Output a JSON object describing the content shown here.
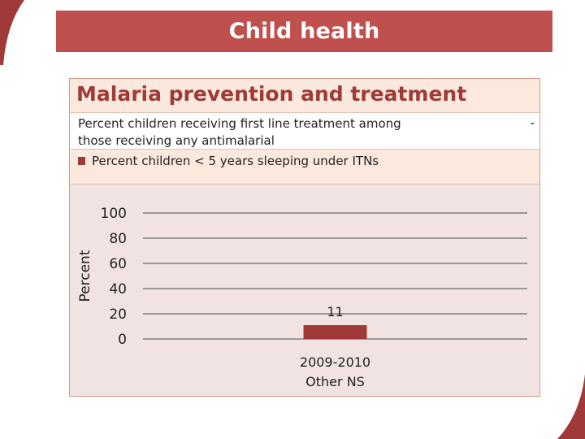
{
  "slide": {
    "title": "Child health"
  },
  "panel": {
    "heading": "Malaria prevention and treatment",
    "legend": [
      {
        "label": "Percent children receiving first line treatment among those receiving any antimalarial",
        "marker": "-"
      },
      {
        "label": "Percent children < 5 years sleeping under ITNs",
        "color": "#a03a38"
      }
    ]
  },
  "colors": {
    "banner": "#c0504d",
    "bar": "#a03a38",
    "heading": "#a03a38",
    "plot_background": "#f2e3e3",
    "header_background": "#fbe9de",
    "gridline": "#7f7f7f"
  },
  "chart_data": {
    "type": "bar",
    "categories": [
      "2009-2010\nOther NS"
    ],
    "series": [
      {
        "name": "Percent children < 5 years sleeping under ITNs",
        "values": [
          11
        ]
      }
    ],
    "data_labels": [
      "11"
    ],
    "ylabel": "Percent",
    "xlabel": "",
    "ylim": [
      0,
      100
    ],
    "yticks": [
      0,
      20,
      40,
      60,
      80,
      100
    ],
    "grid": true,
    "legend_position": "top"
  }
}
